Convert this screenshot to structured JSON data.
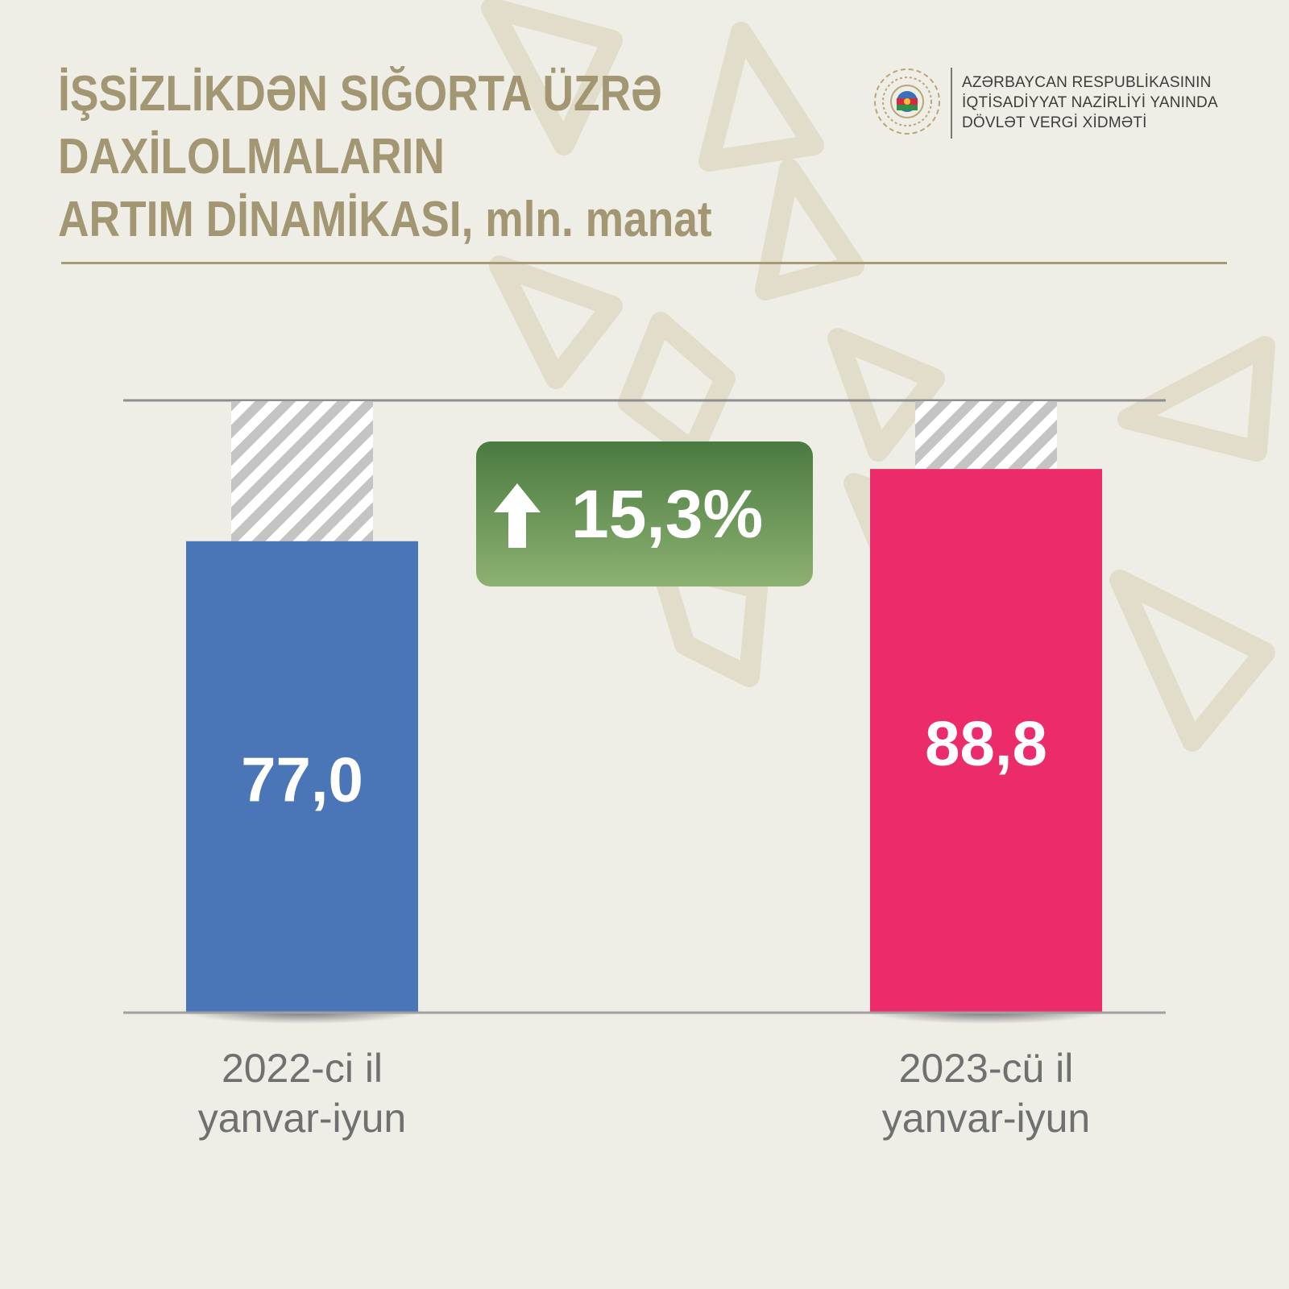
{
  "title_lines": [
    "İŞSİZLİKDƏN SIĞORTA ÜZRƏ",
    "DAXİLOLMALARIN",
    "ARTIM DİNAMİKASI, mln. manat"
  ],
  "logo": {
    "icon": "azerbaijan-emblem-icon",
    "lines": [
      "AZƏRBAYCAN RESPUBLİKASININ",
      "İQTİSADİYYAT NAZİRLİYİ YANINDA",
      "DÖVLƏT VERGİ XİDMƏTİ"
    ]
  },
  "growth": {
    "icon": "arrow-up-icon",
    "label": "15,3%"
  },
  "colors": {
    "title": "#a39673",
    "bar_2022": "#4a76b8",
    "bar_2023": "#ec2c6a",
    "badge_top": "#4a7a40",
    "badge_bottom": "#8db172"
  },
  "chart_data": {
    "type": "bar",
    "title": "İŞSİZLİKDƏN SIĞORTA ÜZRƏ DAXİLOLMALARIN ARTIM DİNAMİKASI, mln. manat",
    "categories": [
      [
        "2022-ci il",
        "yanvar-iyun"
      ],
      [
        "2023-cü il",
        "yanvar-iyun"
      ]
    ],
    "values": [
      77.0,
      88.8
    ],
    "value_labels": [
      "77,0",
      "88,8"
    ],
    "colors": [
      "#4a76b8",
      "#ec2c6a"
    ],
    "ylim": [
      0,
      100
    ],
    "grid": false,
    "legend": "none"
  }
}
